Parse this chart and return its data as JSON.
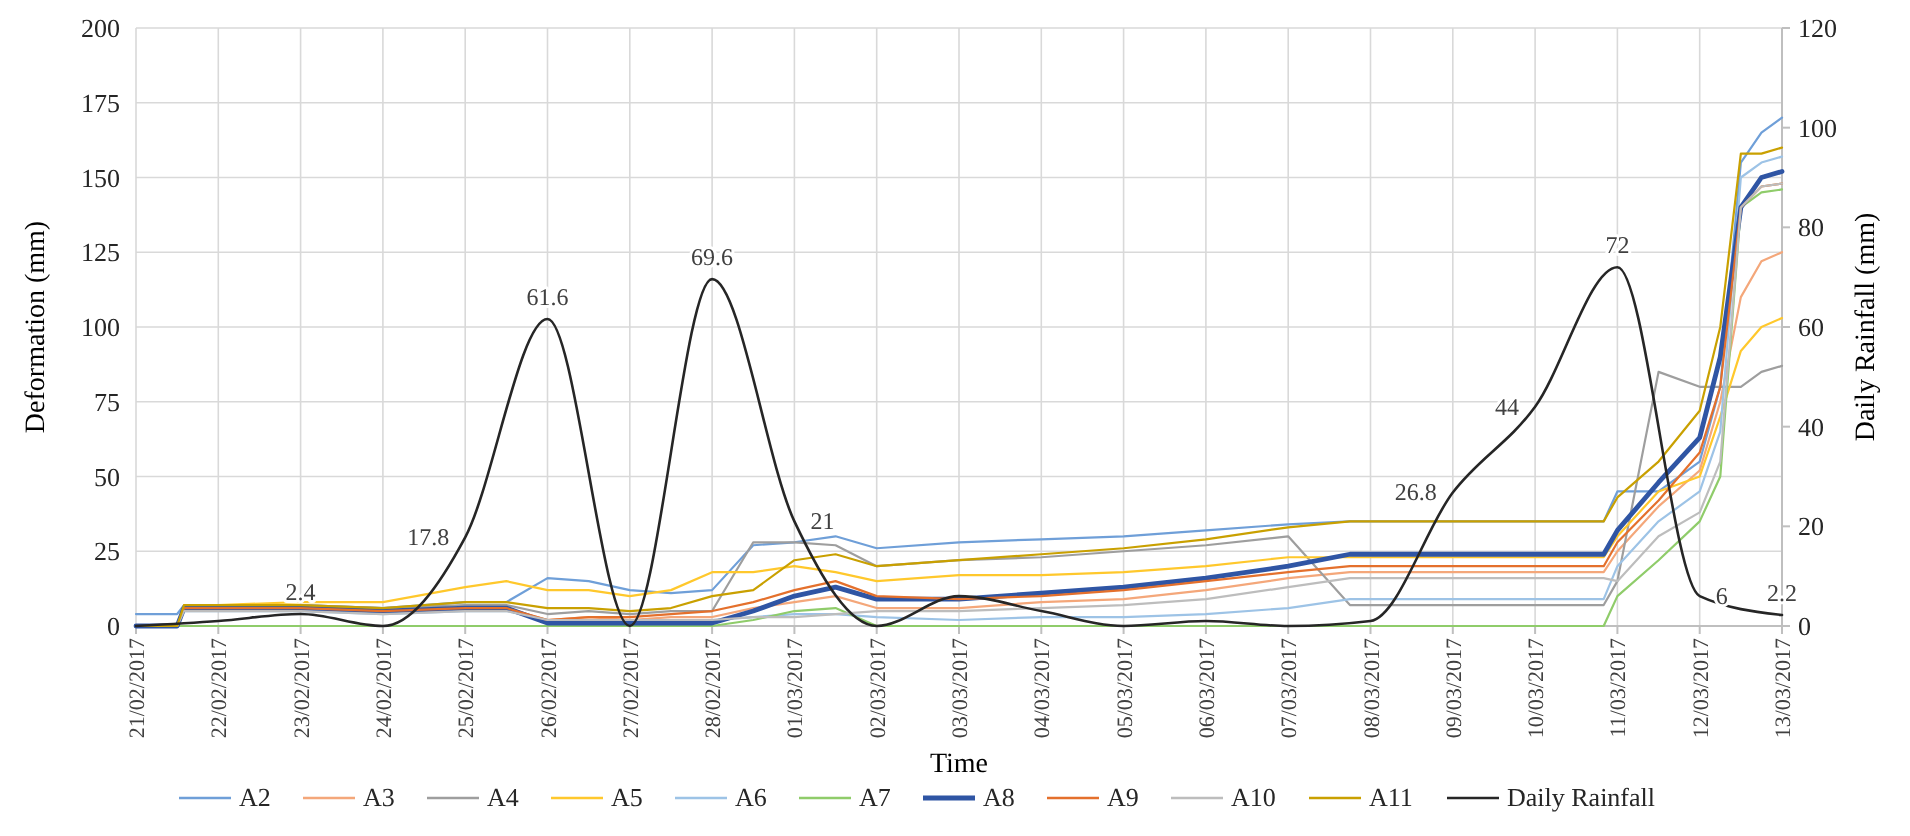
{
  "chart_data": {
    "type": "line",
    "xlabel": "Time",
    "ylabel": "Deformation (mm)",
    "y2label": "Daily Rainfall (mm)",
    "x": [
      "2017-02-21T00:00",
      "2017-02-21T12:00",
      "2017-02-21T14:00",
      "2017-02-22T00:00",
      "2017-02-23T00:00",
      "2017-02-24T00:00",
      "2017-02-25T00:00",
      "2017-02-25T12:00",
      "2017-02-26T00:00",
      "2017-02-26T12:00",
      "2017-02-27T00:00",
      "2017-02-27T12:00",
      "2017-02-28T00:00",
      "2017-02-28T12:00",
      "2017-03-01T00:00",
      "2017-03-01T12:00",
      "2017-03-02T00:00",
      "2017-03-03T00:00",
      "2017-03-04T00:00",
      "2017-03-05T00:00",
      "2017-03-06T00:00",
      "2017-03-07T00:00",
      "2017-03-07T18:00",
      "2017-03-10T20:00",
      "2017-03-11T00:00",
      "2017-03-11T12:00",
      "2017-03-12T00:00",
      "2017-03-12T06:00",
      "2017-03-12T12:00",
      "2017-03-12T18:00",
      "2017-03-13T00:00"
    ],
    "xlim": [
      "2017-02-21",
      "2017-03-13"
    ],
    "xticks": [
      {
        "value": "2017-02-21",
        "label": "21/02/2017"
      },
      {
        "value": "2017-02-22",
        "label": "22/02/2017"
      },
      {
        "value": "2017-02-23",
        "label": "23/02/2017"
      },
      {
        "value": "2017-02-24",
        "label": "24/02/2017"
      },
      {
        "value": "2017-02-25",
        "label": "25/02/2017"
      },
      {
        "value": "2017-02-26",
        "label": "26/02/2017"
      },
      {
        "value": "2017-02-27",
        "label": "27/02/2017"
      },
      {
        "value": "2017-02-28",
        "label": "28/02/2017"
      },
      {
        "value": "2017-03-01",
        "label": "01/03/2017"
      },
      {
        "value": "2017-03-02",
        "label": "02/03/2017"
      },
      {
        "value": "2017-03-03",
        "label": "03/03/2017"
      },
      {
        "value": "2017-03-04",
        "label": "04/03/2017"
      },
      {
        "value": "2017-03-05",
        "label": "05/03/2017"
      },
      {
        "value": "2017-03-06",
        "label": "06/03/2017"
      },
      {
        "value": "2017-03-07",
        "label": "07/03/2017"
      },
      {
        "value": "2017-03-08",
        "label": "08/03/2017"
      },
      {
        "value": "2017-03-09",
        "label": "09/03/2017"
      },
      {
        "value": "2017-03-10",
        "label": "10/03/2017"
      },
      {
        "value": "2017-03-11",
        "label": "11/03/2017"
      },
      {
        "value": "2017-03-12",
        "label": "12/03/2017"
      },
      {
        "value": "2017-03-13",
        "label": "13/03/2017"
      }
    ],
    "ylim": [
      0,
      200
    ],
    "yticks": [
      0,
      25,
      50,
      75,
      100,
      125,
      150,
      175,
      200
    ],
    "y2lim": [
      0,
      120
    ],
    "y2ticks": [
      0,
      20,
      40,
      60,
      80,
      100,
      120
    ],
    "grid": true,
    "legend": "bottom",
    "line_style": "solid",
    "marker": "none",
    "series": [
      {
        "name": "A2",
        "color": "#6f9fd8",
        "values": [
          4,
          4,
          7,
          7,
          7,
          6,
          8,
          8,
          16,
          15,
          12,
          11,
          12,
          27,
          28,
          30,
          26,
          28,
          29,
          30,
          32,
          34,
          35,
          35,
          45,
          45,
          55,
          80,
          155,
          165,
          170
        ]
      },
      {
        "name": "A3",
        "color": "#f4a77a",
        "values": [
          0,
          0,
          6,
          6,
          6,
          5,
          6,
          6,
          2,
          3,
          2,
          3,
          3,
          6,
          8,
          10,
          6,
          6,
          8,
          9,
          12,
          16,
          18,
          18,
          25,
          40,
          52,
          75,
          110,
          122,
          125
        ]
      },
      {
        "name": "A4",
        "color": "#9e9e9e",
        "values": [
          0,
          0,
          7,
          7,
          7,
          6,
          7,
          7,
          4,
          5,
          4,
          5,
          5,
          28,
          28,
          27,
          20,
          22,
          23,
          25,
          27,
          30,
          7,
          7,
          15,
          85,
          80,
          80,
          80,
          85,
          87
        ]
      },
      {
        "name": "A5",
        "color": "#ffc82c",
        "values": [
          null,
          null,
          7,
          7,
          8,
          8,
          13,
          15,
          12,
          12,
          10,
          12,
          18,
          18,
          20,
          18,
          15,
          17,
          17,
          18,
          20,
          23,
          23,
          23,
          30,
          45,
          50,
          70,
          92,
          100,
          103
        ]
      },
      {
        "name": "A6",
        "color": "#9dc3e6",
        "values": [
          0,
          0,
          5,
          5,
          5,
          4,
          5,
          5,
          2,
          2,
          2,
          2,
          2,
          3,
          4,
          4,
          3,
          2,
          3,
          3,
          4,
          6,
          9,
          9,
          20,
          35,
          45,
          65,
          150,
          155,
          157
        ]
      },
      {
        "name": "A7",
        "color": "#8fcc6a",
        "values": [
          0,
          0,
          0,
          0,
          0,
          0,
          0,
          0,
          0,
          0,
          0,
          0,
          0,
          2,
          5,
          6,
          0,
          0,
          0,
          0,
          0,
          0,
          0,
          0,
          10,
          22,
          35,
          50,
          140,
          145,
          146
        ]
      },
      {
        "name": "A8",
        "color": "#2f55a4",
        "values": [
          0,
          0,
          6,
          6,
          6,
          5,
          6,
          6,
          1,
          1,
          1,
          1,
          1,
          5,
          10,
          13,
          9,
          9,
          11,
          13,
          16,
          20,
          24,
          24,
          32,
          48,
          63,
          90,
          140,
          150,
          152
        ]
      },
      {
        "name": "A9",
        "color": "#e4702c",
        "values": [
          0,
          0,
          6,
          6,
          6,
          5,
          6,
          6,
          2,
          3,
          3,
          4,
          5,
          8,
          12,
          15,
          10,
          9,
          10,
          12,
          15,
          18,
          20,
          20,
          28,
          42,
          58,
          80,
          140,
          147,
          148
        ]
      },
      {
        "name": "A10",
        "color": "#bdbdbd",
        "values": [
          0,
          0,
          5,
          5,
          5,
          4,
          5,
          5,
          2,
          2,
          2,
          2,
          2,
          3,
          3,
          4,
          5,
          5,
          6,
          7,
          9,
          13,
          16,
          16,
          15,
          30,
          38,
          55,
          140,
          147,
          148
        ]
      },
      {
        "name": "A11",
        "color": "#c9a000",
        "values": [
          0,
          0,
          7,
          7,
          7,
          6,
          8,
          8,
          6,
          6,
          5,
          6,
          10,
          12,
          22,
          24,
          20,
          22,
          24,
          26,
          29,
          33,
          35,
          35,
          43,
          55,
          72,
          100,
          158,
          158,
          160
        ]
      },
      {
        "name": "Daily Rainfall",
        "color": "#262626",
        "axis": "y2",
        "x": [
          "2017-02-21",
          "2017-02-22",
          "2017-02-23",
          "2017-02-24",
          "2017-02-25",
          "2017-02-26",
          "2017-02-27",
          "2017-02-28",
          "2017-03-01",
          "2017-03-02",
          "2017-03-03",
          "2017-03-04",
          "2017-03-05",
          "2017-03-06",
          "2017-03-07",
          "2017-03-08",
          "2017-03-09",
          "2017-03-10",
          "2017-03-11",
          "2017-03-12",
          "2017-03-13"
        ],
        "values": [
          0,
          1,
          2.4,
          0,
          17.8,
          61.6,
          0,
          69.6,
          21,
          0,
          6,
          3,
          0,
          1,
          0,
          1,
          26.8,
          44,
          72,
          6,
          2.2
        ],
        "value_labels": [
          null,
          null,
          "2.4",
          null,
          "17.8",
          "61.6",
          null,
          "69.6",
          "21",
          null,
          null,
          null,
          null,
          null,
          null,
          null,
          "26.8",
          "44",
          "72",
          "6",
          "2.2"
        ]
      }
    ]
  }
}
